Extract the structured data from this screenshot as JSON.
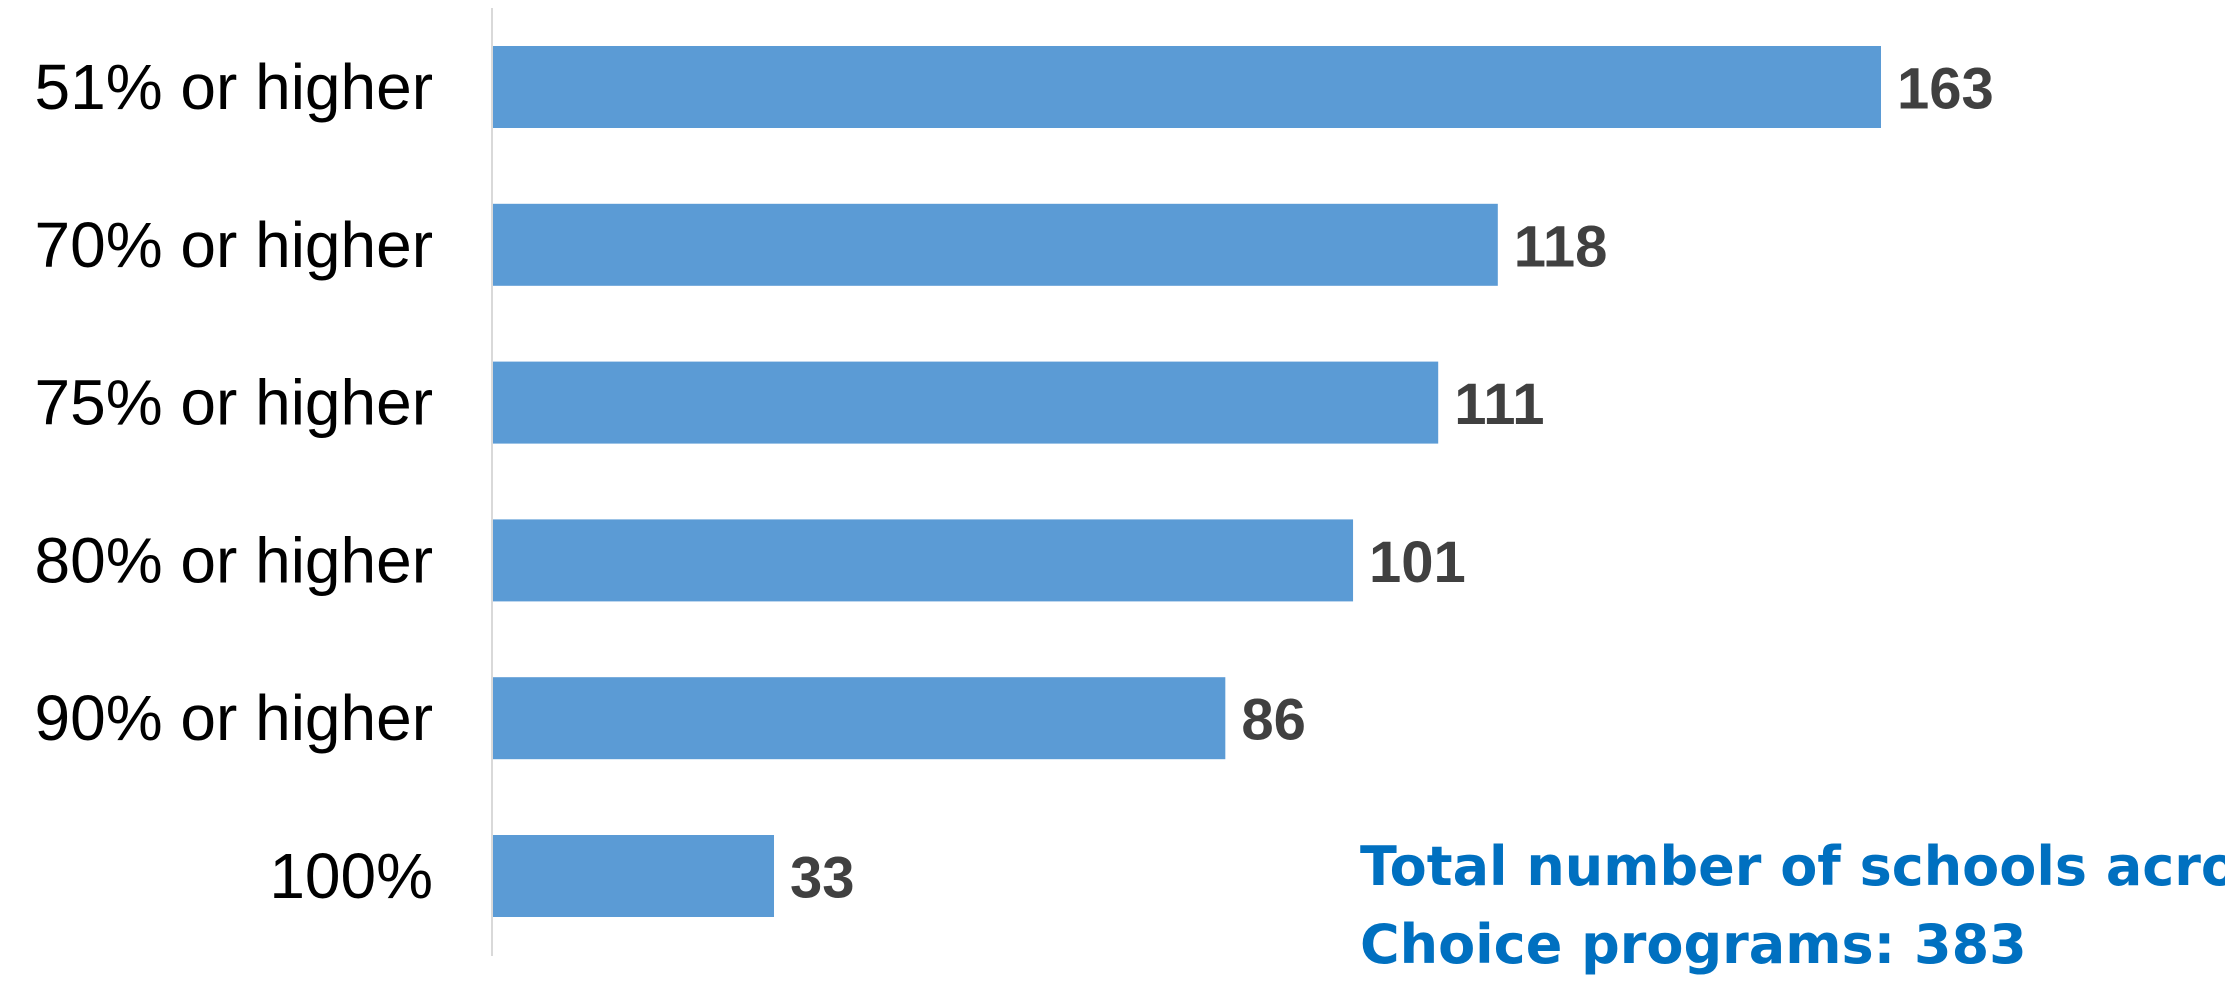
{
  "chart_data": {
    "type": "bar",
    "orientation": "horizontal",
    "categories": [
      "51% or higher",
      "70% or higher",
      "75% or higher",
      "80% or higher",
      "90% or higher",
      "100%"
    ],
    "values": [
      163,
      118,
      111,
      101,
      86,
      33
    ],
    "value_labels": [
      "163",
      "118",
      "111",
      "101",
      "86",
      "33"
    ],
    "title": "",
    "xlabel": "",
    "ylabel": "",
    "xlim": [
      0,
      163
    ],
    "grid": false,
    "legend": "none",
    "colors": {
      "bar": "#5b9bd5",
      "axis": "#d9d9d9",
      "value_label": "#404040",
      "annotation": "#0070c0"
    }
  },
  "annotation": {
    "line1": "Total number of schools across",
    "line2": "Choice programs: 383"
  }
}
